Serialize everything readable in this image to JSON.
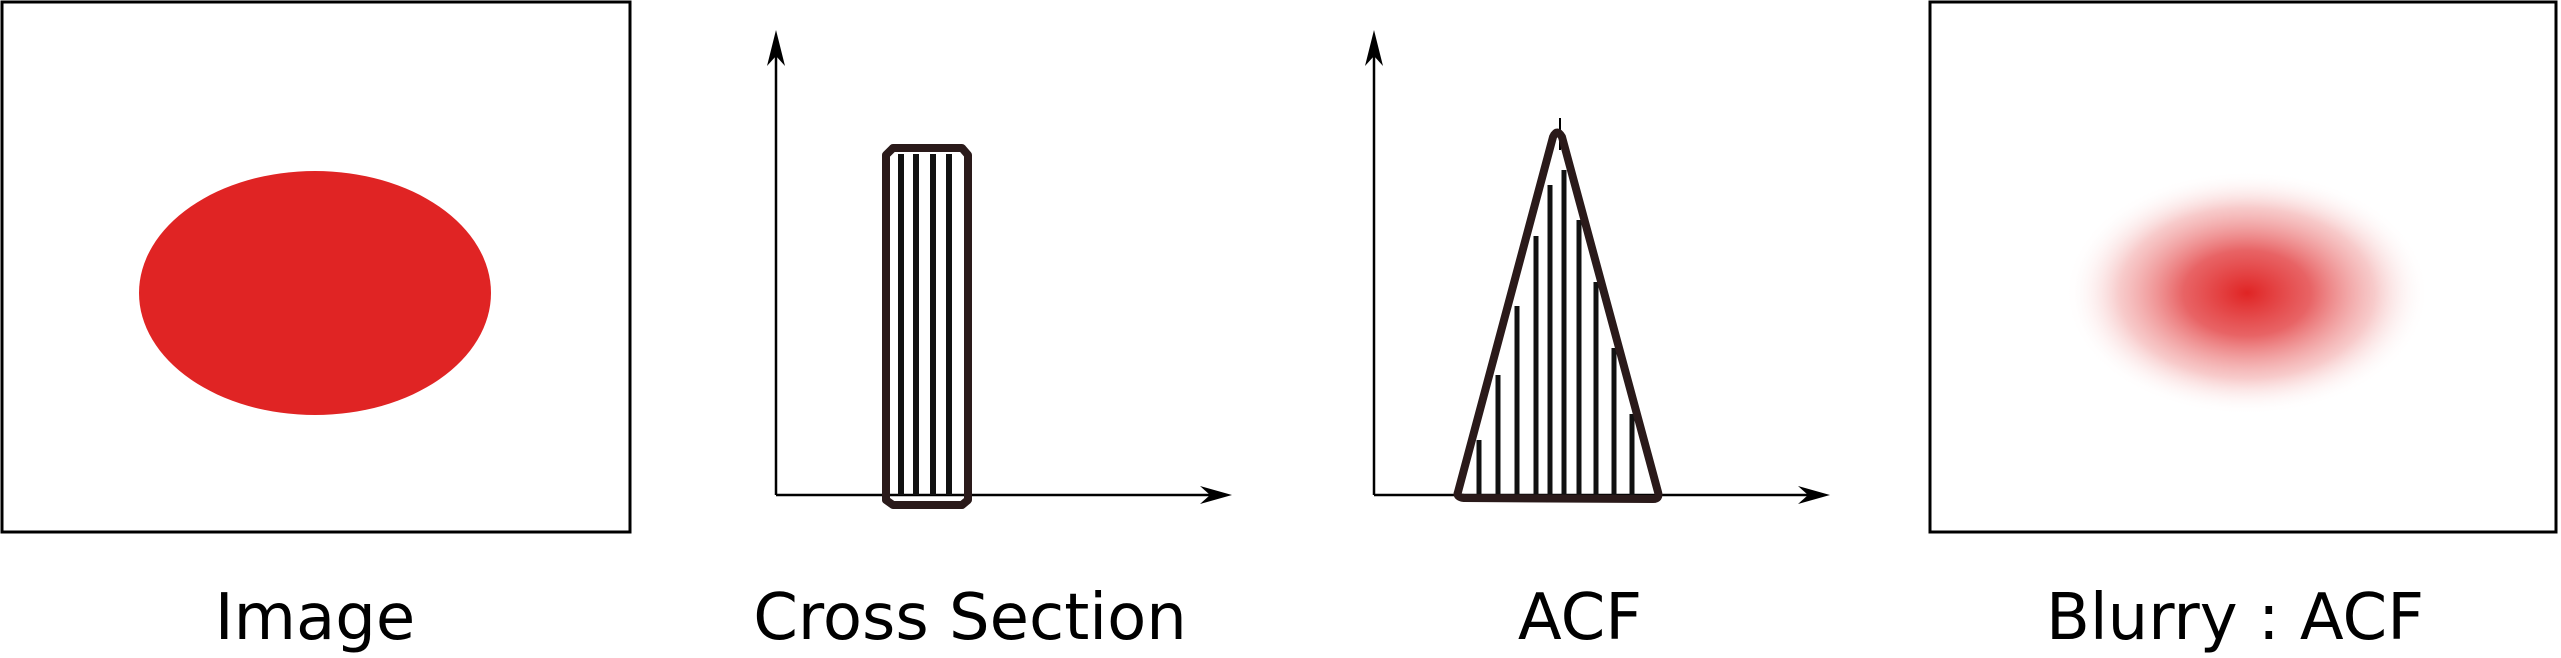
{
  "captions": {
    "image": "Image",
    "cross_section": "Cross Section",
    "acf": "ACF",
    "blurry_acf": "Blurry : ACF"
  },
  "colors": {
    "blob_red": "#e02424",
    "frame": "#000000",
    "bar_outline": "#2a1a1a",
    "hatch": "#111111",
    "background": "#ffffff"
  },
  "panels": [
    {
      "name": "image",
      "shape": "solid-red-ellipse"
    },
    {
      "name": "cross-section",
      "shape": "rectangular-pulse-hatched"
    },
    {
      "name": "acf",
      "shape": "triangular-peak-hatched"
    },
    {
      "name": "blurry-acf",
      "shape": "blurred-red-ellipse"
    }
  ]
}
